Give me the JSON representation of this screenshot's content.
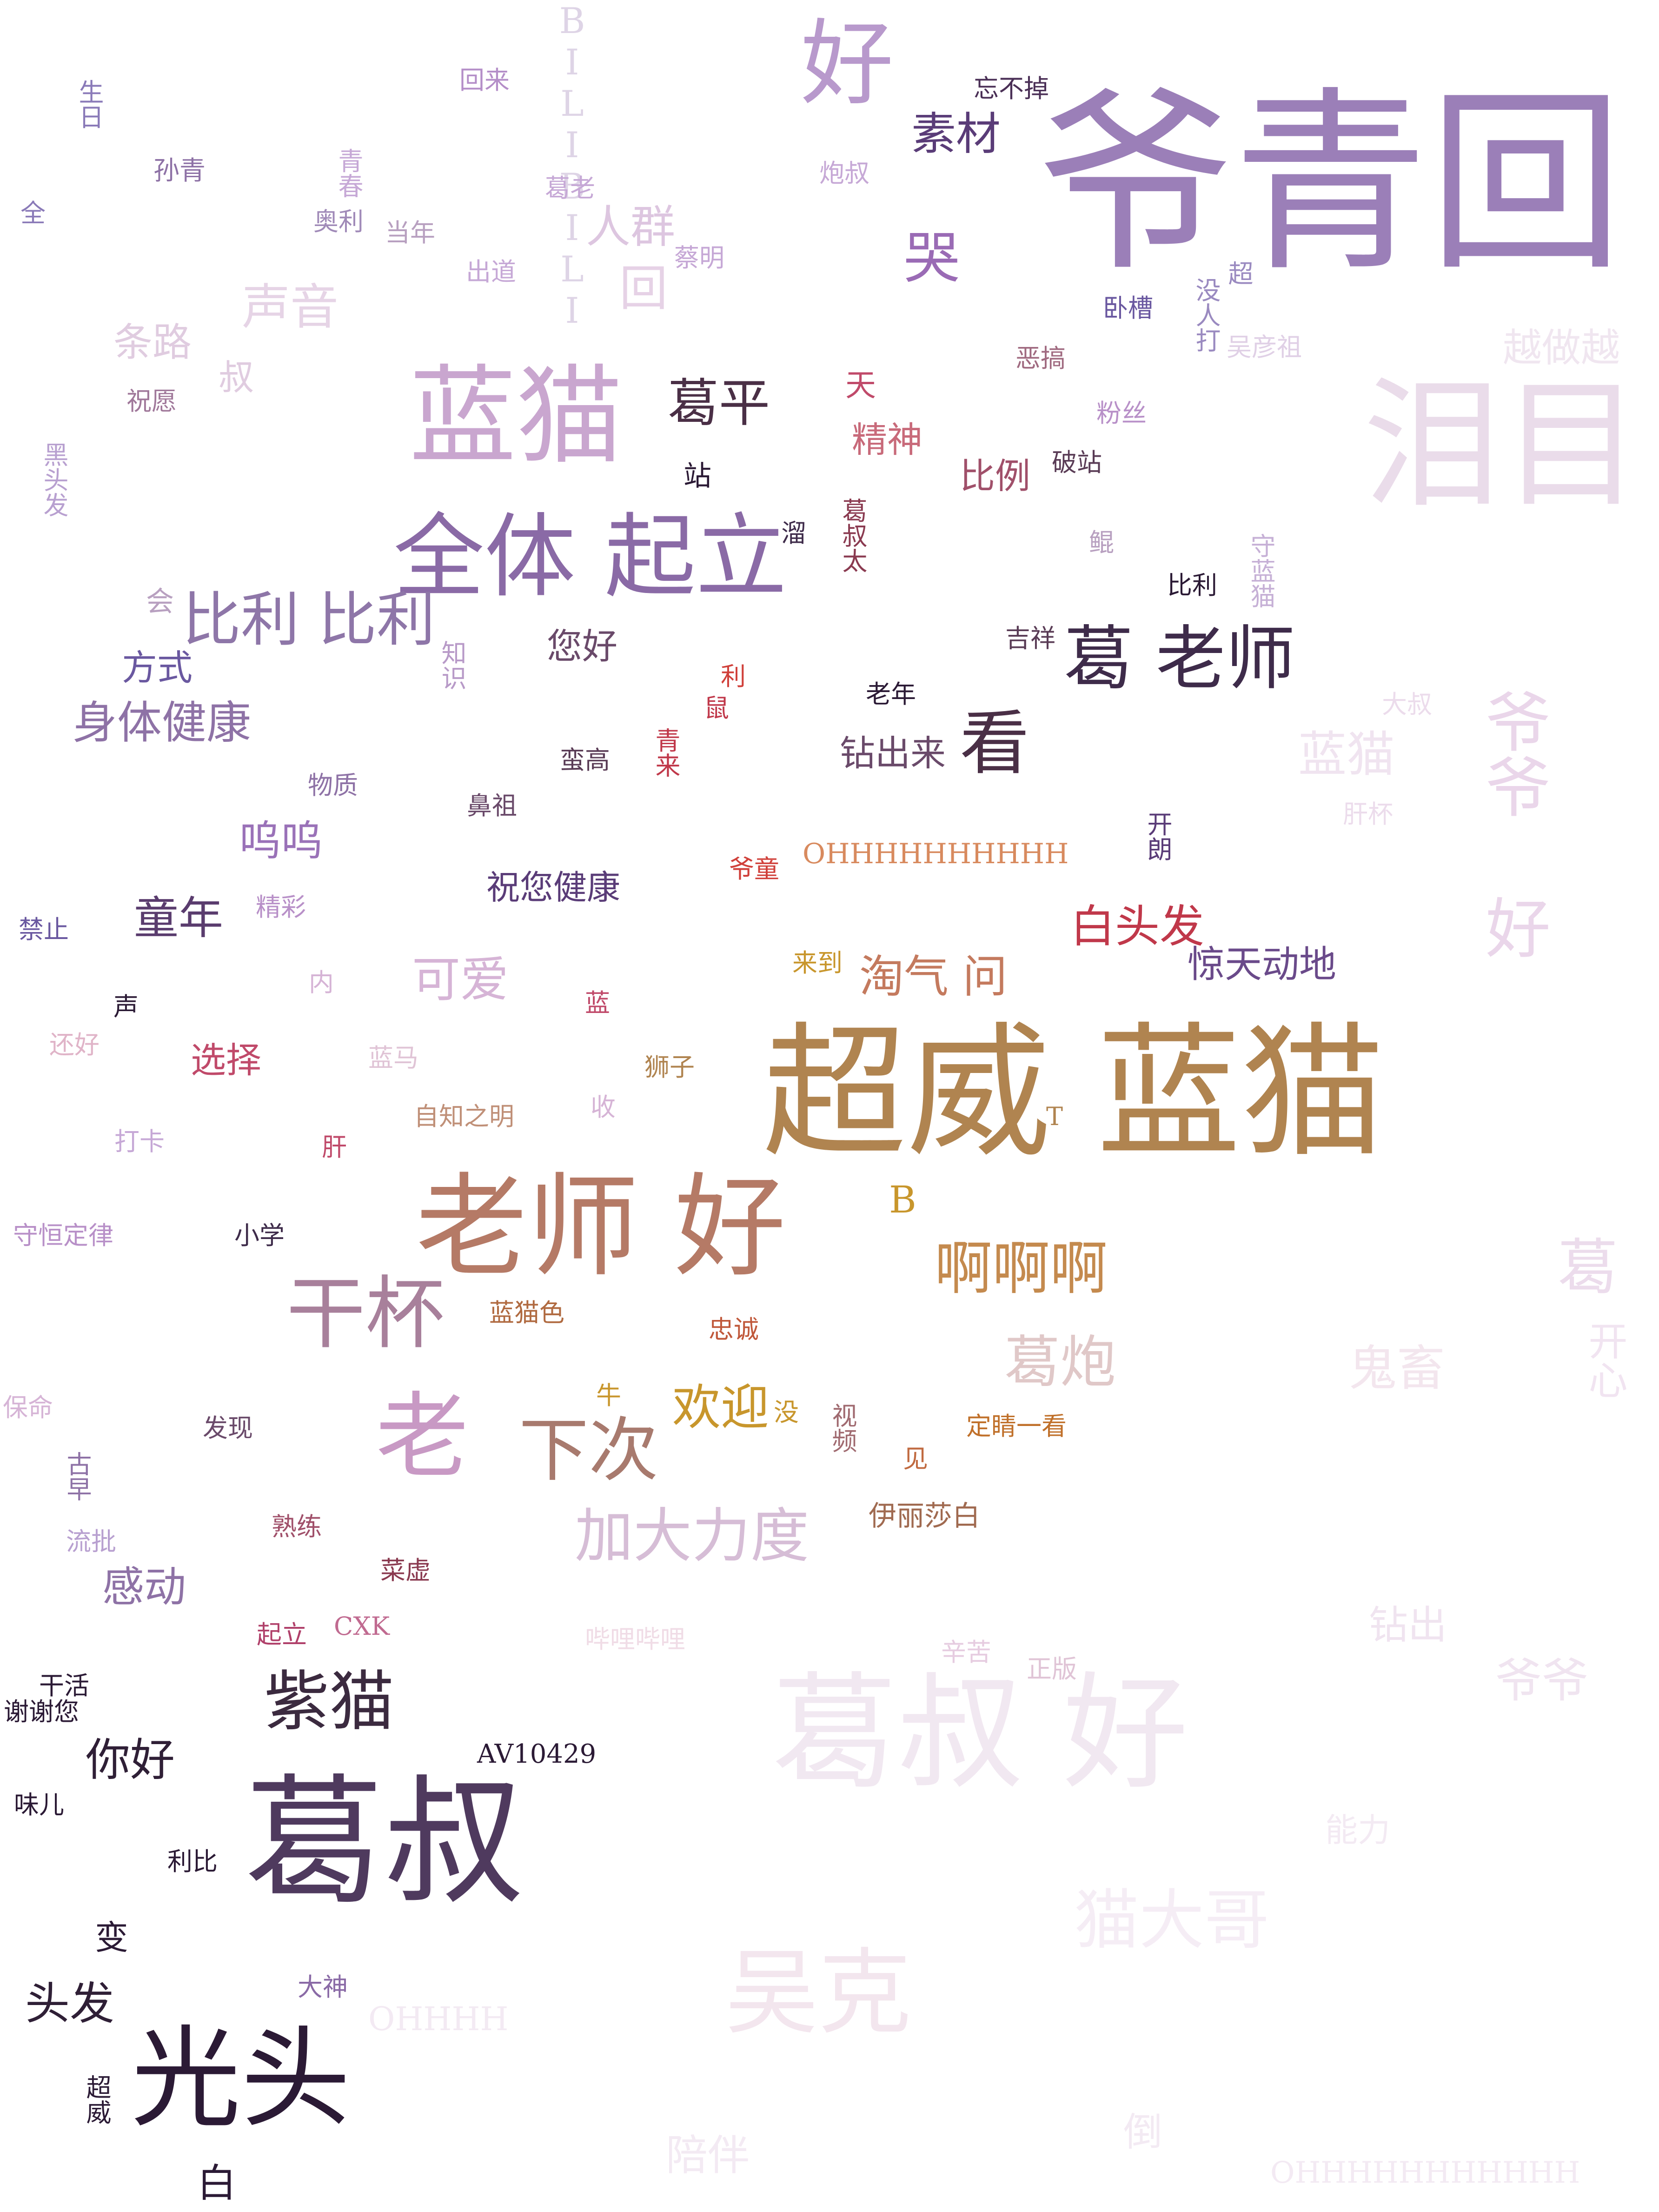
{
  "words": [
    {
      "t": "爷青回",
      "c": "#9b7fb8"
    },
    {
      "t": "蓝猫",
      "c": "#c9a6cf"
    },
    {
      "t": "全体 起立",
      "c": "#8a6aa6"
    },
    {
      "t": "超威 蓝猫",
      "c": "#b08450"
    },
    {
      "t": "老师 好",
      "c": "#b57a66"
    },
    {
      "t": "葛叔",
      "c": "#4f3a5e"
    },
    {
      "t": "光头",
      "c": "#2b1a35"
    },
    {
      "t": "泪目",
      "c": "#eadcea"
    },
    {
      "t": "葛叔 好",
      "c": "#f1e8f1"
    },
    {
      "t": "爷爷 好",
      "c": "#ead6ea"
    },
    {
      "t": "好",
      "c": "#b899cc"
    },
    {
      "t": "比利 比利",
      "c": "#8e76a8"
    },
    {
      "t": "葛 老师",
      "c": "#3e2b4a"
    },
    {
      "t": "看",
      "c": "#4a2f46"
    },
    {
      "t": "紫猫",
      "c": "#3b2a3f"
    },
    {
      "t": "干杯",
      "c": "#a8809b"
    },
    {
      "t": "老",
      "c": "#c899c4"
    },
    {
      "t": "下次",
      "c": "#a87a6e"
    },
    {
      "t": "加大力度",
      "c": "#d6bdd6"
    },
    {
      "t": "啊啊啊",
      "c": "#c48a4e"
    },
    {
      "t": "葛平",
      "c": "#4a2f46"
    },
    {
      "t": "素材",
      "c": "#5a3c78"
    },
    {
      "t": "哭",
      "c": "#9a6bb5"
    },
    {
      "t": "身体健康",
      "c": "#8e72a6"
    },
    {
      "t": "白头发",
      "c": "#c0384a"
    },
    {
      "t": "惊天动地",
      "c": "#6a4a8a"
    },
    {
      "t": "淘气 问",
      "c": "#c47a5e"
    },
    {
      "t": "欢迎",
      "c": "#c8962c"
    },
    {
      "t": "葛炮",
      "c": "#e0c8c8"
    },
    {
      "t": "吴克",
      "c": "#f3e6ee"
    },
    {
      "t": "猫大哥",
      "c": "#f5edf5"
    },
    {
      "t": "鬼畜",
      "c": "#f3e6ee"
    },
    {
      "t": "葛",
      "c": "#ecdcec"
    },
    {
      "t": "开心",
      "c": "#f1e4f1"
    },
    {
      "t": "蓝猫",
      "c": "#f0e4f0"
    },
    {
      "t": "越做越",
      "c": "#f0e6f0"
    },
    {
      "t": "声音",
      "c": "#e6d4e6"
    },
    {
      "t": "条路",
      "c": "#e0cce0"
    },
    {
      "t": "人群",
      "c": "#ddc6e0"
    },
    {
      "t": "回",
      "c": "#e6d2e6"
    },
    {
      "t": "BILIBILI",
      "c": "#ded4e6"
    },
    {
      "t": "童年",
      "c": "#5a3c6e"
    },
    {
      "t": "可爱",
      "c": "#d6b4d6"
    },
    {
      "t": "你好",
      "c": "#2f1f36"
    },
    {
      "t": "头发",
      "c": "#2f1f36"
    },
    {
      "t": "呜呜",
      "c": "#9a72b8"
    },
    {
      "t": "选择",
      "c": "#c04a6a"
    },
    {
      "t": "感动",
      "c": "#8e72a6"
    },
    {
      "t": "钻出来",
      "c": "#6a4a6a"
    },
    {
      "t": "精神",
      "c": "#c86a7a"
    },
    {
      "t": "比例",
      "c": "#a0506a"
    },
    {
      "t": "您好",
      "c": "#6a4a6a"
    },
    {
      "t": "方式",
      "c": "#6a58a0"
    },
    {
      "t": "OHHHHHHHHHH",
      "c": "#d88a5e"
    },
    {
      "t": "祝您健康",
      "c": "#5a3c78"
    },
    {
      "t": "变",
      "c": "#2b1a35"
    },
    {
      "t": "白",
      "c": "#2b1a35"
    },
    {
      "t": "B",
      "c": "#c8962c"
    },
    {
      "t": "伊丽莎白",
      "c": "#a06a50"
    },
    {
      "t": "AV10429",
      "c": "#2b1a35"
    },
    {
      "t": "回来",
      "c": "#b48ec8"
    },
    {
      "t": "忘不掉",
      "c": "#4a2f56"
    },
    {
      "t": "生日",
      "c": "#8a7ab8"
    },
    {
      "t": "孙青",
      "c": "#8e72a6"
    },
    {
      "t": "全",
      "c": "#8a7ab8"
    },
    {
      "t": "奥利",
      "c": "#a08ab8"
    },
    {
      "t": "当年",
      "c": "#b8a0c0"
    },
    {
      "t": "青春",
      "c": "#c6a8d6"
    },
    {
      "t": "葛老",
      "c": "#c6a8d6"
    },
    {
      "t": "炮叔",
      "c": "#c6a8d6"
    },
    {
      "t": "出道",
      "c": "#c6a8d6"
    },
    {
      "t": "蔡明",
      "c": "#c6a8d6"
    },
    {
      "t": "卧槽",
      "c": "#6a58a0"
    },
    {
      "t": "恶搞",
      "c": "#a06a80"
    },
    {
      "t": "祝愿",
      "c": "#a0789a"
    },
    {
      "t": "叔",
      "c": "#e0cce0"
    },
    {
      "t": "黑头发",
      "c": "#b8a0d0"
    },
    {
      "t": "站",
      "c": "#2b1a35"
    },
    {
      "t": "天",
      "c": "#c04a6a"
    },
    {
      "t": "破站",
      "c": "#5a3c56"
    },
    {
      "t": "粉丝",
      "c": "#b890c8"
    },
    {
      "t": "溜",
      "c": "#3e2b4a"
    },
    {
      "t": "葛叔太",
      "c": "#8a3a50"
    },
    {
      "t": "鲲",
      "c": "#b8a0c0"
    },
    {
      "t": "比利",
      "c": "#2b1a35"
    },
    {
      "t": "守蓝猫",
      "c": "#c6b0d6"
    },
    {
      "t": "会",
      "c": "#b8a0c0"
    },
    {
      "t": "知识",
      "c": "#b89ac8"
    },
    {
      "t": "利",
      "c": "#d0403a"
    },
    {
      "t": "鼠",
      "c": "#c0384a"
    },
    {
      "t": "老年",
      "c": "#2b1a35"
    },
    {
      "t": "吉祥",
      "c": "#5a3c56"
    },
    {
      "t": "青来",
      "c": "#c0384a"
    },
    {
      "t": "蛮高",
      "c": "#5a3c56"
    },
    {
      "t": "物质",
      "c": "#8e72a6"
    },
    {
      "t": "鼻祖",
      "c": "#6a4a6a"
    },
    {
      "t": "精彩",
      "c": "#b890c8"
    },
    {
      "t": "禁止",
      "c": "#6a58a0"
    },
    {
      "t": "爷童",
      "c": "#d0403a"
    },
    {
      "t": "开朗",
      "c": "#5a3c78"
    },
    {
      "t": "内",
      "c": "#d6b4d6"
    },
    {
      "t": "声",
      "c": "#2b1a35"
    },
    {
      "t": "蓝",
      "c": "#c04a6a"
    },
    {
      "t": "来到",
      "c": "#c8962c"
    },
    {
      "t": "还好",
      "c": "#e0b4c8"
    },
    {
      "t": "蓝马",
      "c": "#e0c4d6"
    },
    {
      "t": "狮子",
      "c": "#b08450"
    },
    {
      "t": "打卡",
      "c": "#c6a8d6"
    },
    {
      "t": "肝",
      "c": "#c04a6a"
    },
    {
      "t": "自知之明",
      "c": "#c09078"
    },
    {
      "t": "收",
      "c": "#d6b4d6"
    },
    {
      "t": "T",
      "c": "#b08450"
    },
    {
      "t": "守恒定律",
      "c": "#b890c8"
    },
    {
      "t": "小学",
      "c": "#3e2b4a"
    },
    {
      "t": "蓝猫色",
      "c": "#b06a40"
    },
    {
      "t": "忠诚",
      "c": "#c0583a"
    },
    {
      "t": "保命",
      "c": "#d6b4d6"
    },
    {
      "t": "发现",
      "c": "#6a4a6a"
    },
    {
      "t": "牛",
      "c": "#c8962c"
    },
    {
      "t": "没",
      "c": "#c8962c"
    },
    {
      "t": "视频",
      "c": "#a06a70"
    },
    {
      "t": "见",
      "c": "#c06a40"
    },
    {
      "t": "定睛一看",
      "c": "#c0702a"
    },
    {
      "t": "古早",
      "c": "#8e72a6"
    },
    {
      "t": "流批",
      "c": "#b8a0d0"
    },
    {
      "t": "熟练",
      "c": "#a0506a"
    },
    {
      "t": "菜虚",
      "c": "#8a3a50"
    },
    {
      "t": "起立",
      "c": "#b0406a"
    },
    {
      "t": "CXK",
      "c": "#c06a90"
    },
    {
      "t": "哔哩哔哩",
      "c": "#f0dce6"
    },
    {
      "t": "辛苦",
      "c": "#e6cce0"
    },
    {
      "t": "正版",
      "c": "#e0c4d6"
    },
    {
      "t": "干活",
      "c": "#2b1a35"
    },
    {
      "t": "谢谢您",
      "c": "#2b1a35"
    },
    {
      "t": "味儿",
      "c": "#2b1a35"
    },
    {
      "t": "利比",
      "c": "#2b1a35"
    },
    {
      "t": "大神",
      "c": "#8a6aa6"
    },
    {
      "t": "超威",
      "c": "#2b1a35"
    },
    {
      "t": "没人打",
      "c": "#9a8ac0"
    },
    {
      "t": "超",
      "c": "#9a8ac0"
    },
    {
      "t": "吴彦祖",
      "c": "#e0d0e6"
    },
    {
      "t": "大叔",
      "c": "#ecdcec"
    },
    {
      "t": "肝杯",
      "c": "#ecdcec"
    },
    {
      "t": "OHHHH",
      "c": "#f3eaf3"
    },
    {
      "t": "OHHHHHHHHHHH",
      "c": "#f3eaf3"
    },
    {
      "t": "陪伴",
      "c": "#f3eaf3"
    },
    {
      "t": "钻出",
      "c": "#f0e4f0"
    },
    {
      "t": "爷爷",
      "c": "#f0e4f0"
    },
    {
      "t": "倒",
      "c": "#f3eaf3"
    },
    {
      "t": "能力",
      "c": "#f3eaf3"
    }
  ]
}
